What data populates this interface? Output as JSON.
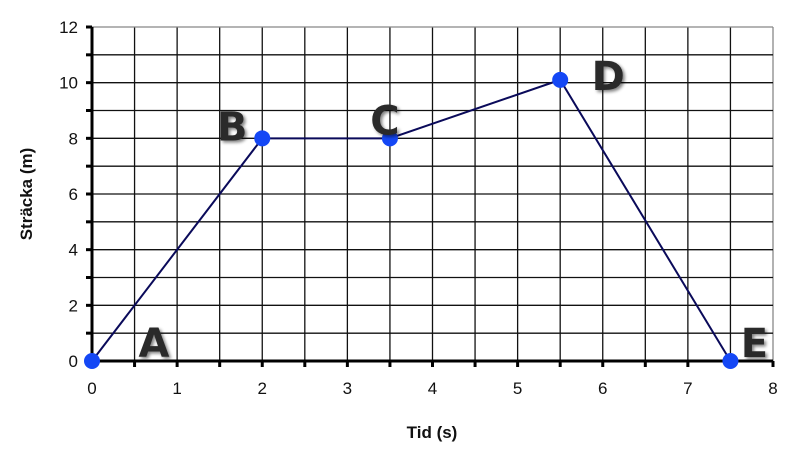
{
  "chart_data": {
    "type": "line",
    "title": "",
    "xlabel": "Tid (s)",
    "ylabel": "Sträcka (m)",
    "xlim": [
      0,
      8
    ],
    "ylim": [
      0,
      12
    ],
    "xticks": [
      "0",
      "1",
      "2",
      "3",
      "4",
      "5",
      "6",
      "7",
      "8"
    ],
    "yticks": [
      "0",
      "2",
      "4",
      "6",
      "8",
      "10",
      "12"
    ],
    "grid": true,
    "x_minor_step": 0.5,
    "y_minor_step": 1,
    "points": [
      {
        "label": "A",
        "x": 0,
        "y": 0
      },
      {
        "label": "B",
        "x": 2,
        "y": 8
      },
      {
        "label": "C",
        "x": 3.5,
        "y": 8
      },
      {
        "label": "D",
        "x": 5.5,
        "y": 10.1
      },
      {
        "label": "E",
        "x": 7.5,
        "y": 0
      }
    ],
    "colors": {
      "line": "#0a0a5a",
      "marker": "#1447f5",
      "grid": "#111111"
    }
  }
}
